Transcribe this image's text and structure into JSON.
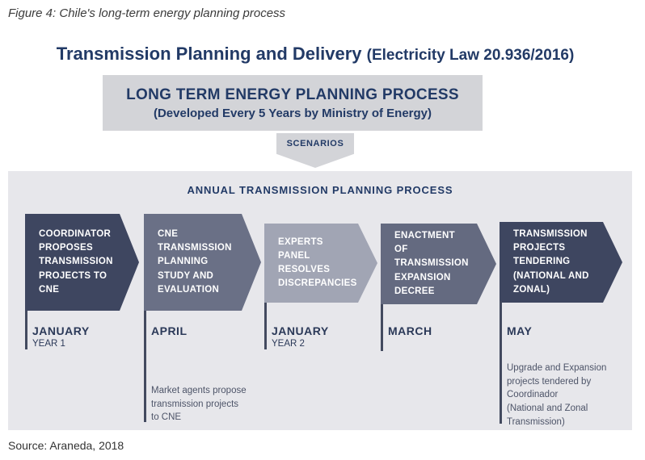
{
  "figure_caption": "Figure 4: Chile's long-term energy planning process",
  "heading": {
    "main": "Transmission Planning and Delivery ",
    "law": "(Electricity Law 20.936/2016)"
  },
  "long_term_box": {
    "line1": "LONG TERM ENERGY PLANNING PROCESS",
    "line2": "(Developed Every 5 Years by Ministry of Energy)"
  },
  "scenarios_label": "SCENARIOS",
  "panel": {
    "title": "ANNUAL TRANSMISSION PLANNING PROCESS",
    "stages": [
      {
        "label": "COORDINATOR\nPROPOSES\nTRANSMISSION\nPROJECTS TO\nCNE",
        "month": "JANUARY",
        "sub": "YEAR 1",
        "note": "",
        "color": "#3e4660"
      },
      {
        "label": "CNE\nTRANSMISSION\nPLANNING\nSTUDY AND\nEVALUATION",
        "month": "APRIL",
        "sub": "",
        "note": "Market agents propose\ntransmission projects\nto CNE",
        "color": "#6a7086"
      },
      {
        "label": "EXPERTS\nPANEL\nRESOLVES\nDISCREPANCIES",
        "month": "JANUARY",
        "sub": "YEAR 2",
        "note": "",
        "color": "#a1a5b4"
      },
      {
        "label": "ENACTMENT\nOF\nTRANSMISSION\nEXPANSION\nDECREE",
        "month": "MARCH",
        "sub": "",
        "note": "",
        "color": "#646a80"
      },
      {
        "label": "TRANSMISSION\nPROJECTS\nTENDERING\n(NATIONAL AND\nZONAL)",
        "month": "MAY",
        "sub": "",
        "note": "Upgrade and Expansion\nprojects tendered by\nCoordinador\n(National and Zonal\nTransmission)",
        "color": "#3e4660"
      }
    ]
  },
  "source": "Source: Araneda, 2018",
  "colors": {
    "heading_navy": "#223a66",
    "box_gray": "#d3d4d8",
    "panel_gray": "#e7e7eb",
    "stage_dark": "#3e4660",
    "stage_medium": "#6a7086",
    "stage_light": "#a1a5b4",
    "stage_medium_dark": "#646a80",
    "tick_line": "#434a5f"
  }
}
